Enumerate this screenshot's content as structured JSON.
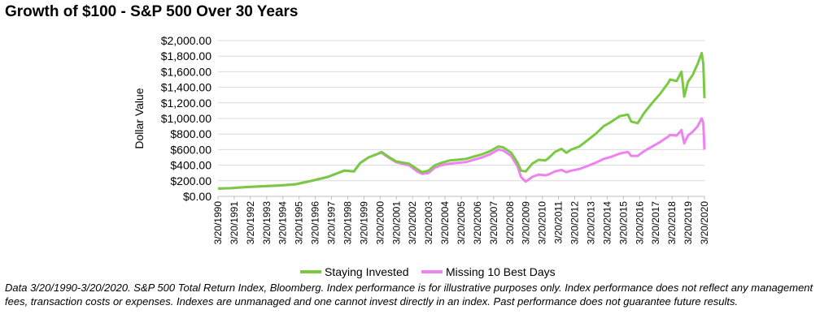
{
  "chart_data": {
    "type": "line",
    "title": "Growth of $100 - S&P 500 Over 30 Years",
    "xlabel": "",
    "ylabel": "Dollar Value",
    "ylim": [
      0,
      2000
    ],
    "yticks": [
      "$0.00",
      "$200.00",
      "$400.00",
      "$600.00",
      "$800.00",
      "$1,000.00",
      "$1,200.00",
      "$1,400.00",
      "$1,600.00",
      "$1,800.00",
      "$2,000.00"
    ],
    "xlim": [
      1990.22,
      2020.22
    ],
    "xticks": [
      "3/20/1990",
      "3/20/1991",
      "3/20/1992",
      "3/20/1993",
      "3/20/1994",
      "3/20/1995",
      "3/20/1996",
      "3/20/1997",
      "3/20/1998",
      "3/20/1999",
      "3/20/2000",
      "3/20/2001",
      "3/20/2002",
      "3/20/2003",
      "3/20/2004",
      "3/20/2005",
      "3/20/2006",
      "3/20/2007",
      "3/20/2008",
      "3/20/2009",
      "3/20/2010",
      "3/20/2011",
      "3/20/2012",
      "3/20/2013",
      "3/20/2014",
      "3/20/2015",
      "3/20/2016",
      "3/20/2017",
      "3/20/2018",
      "3/20/2019",
      "3/20/2020"
    ],
    "grid": true,
    "legend_position": "bottom",
    "series": [
      {
        "name": "Staying Invested",
        "color": "#7ac943",
        "x": [
          1990.22,
          1991.0,
          1992.0,
          1993.0,
          1994.0,
          1995.0,
          1996.0,
          1997.0,
          1998.0,
          1998.6,
          1999.0,
          1999.5,
          2000.0,
          2000.3,
          2000.8,
          2001.2,
          2001.7,
          2002.0,
          2002.5,
          2002.8,
          2003.2,
          2003.6,
          2004.0,
          2004.5,
          2005.0,
          2005.5,
          2006.0,
          2006.5,
          2007.0,
          2007.5,
          2007.8,
          2008.3,
          2008.7,
          2008.9,
          2009.2,
          2009.6,
          2010.0,
          2010.4,
          2010.6,
          2011.0,
          2011.4,
          2011.7,
          2012.0,
          2012.5,
          2013.0,
          2013.5,
          2014.0,
          2014.5,
          2015.0,
          2015.5,
          2015.7,
          2016.1,
          2016.5,
          2017.0,
          2017.5,
          2018.0,
          2018.1,
          2018.5,
          2018.8,
          2018.97,
          2019.2,
          2019.5,
          2019.8,
          2020.05,
          2020.15,
          2020.22
        ],
        "values": [
          100,
          105,
          120,
          130,
          140,
          155,
          200,
          250,
          330,
          320,
          430,
          500,
          540,
          570,
          500,
          450,
          430,
          420,
          350,
          310,
          330,
          400,
          430,
          460,
          470,
          480,
          510,
          540,
          580,
          640,
          630,
          560,
          430,
          330,
          320,
          420,
          470,
          460,
          490,
          570,
          610,
          560,
          600,
          640,
          720,
          800,
          900,
          960,
          1030,
          1050,
          960,
          940,
          1070,
          1200,
          1320,
          1460,
          1500,
          1480,
          1600,
          1280,
          1470,
          1560,
          1700,
          1840,
          1700,
          1260
        ]
      },
      {
        "name": "Missing 10 Best Days",
        "color": "#ee82ee",
        "x": [
          1990.22,
          1991.0,
          1992.0,
          1993.0,
          1994.0,
          1995.0,
          1996.0,
          1997.0,
          1998.0,
          1998.6,
          1999.0,
          1999.5,
          2000.0,
          2000.3,
          2000.8,
          2001.2,
          2001.7,
          2002.0,
          2002.5,
          2002.8,
          2003.2,
          2003.6,
          2004.0,
          2004.5,
          2005.0,
          2005.5,
          2006.0,
          2006.5,
          2007.0,
          2007.5,
          2007.8,
          2008.3,
          2008.7,
          2008.9,
          2009.2,
          2009.6,
          2010.0,
          2010.4,
          2010.6,
          2011.0,
          2011.4,
          2011.7,
          2012.0,
          2012.5,
          2013.0,
          2013.5,
          2014.0,
          2014.5,
          2015.0,
          2015.5,
          2015.7,
          2016.1,
          2016.5,
          2017.0,
          2017.5,
          2018.0,
          2018.1,
          2018.5,
          2018.8,
          2018.97,
          2019.2,
          2019.5,
          2019.8,
          2020.05,
          2020.15,
          2020.22
        ],
        "values": [
          100,
          105,
          120,
          130,
          140,
          155,
          200,
          250,
          330,
          320,
          430,
          500,
          540,
          560,
          490,
          440,
          410,
          400,
          320,
          290,
          300,
          370,
          400,
          420,
          430,
          440,
          470,
          500,
          540,
          600,
          590,
          520,
          380,
          250,
          190,
          250,
          280,
          270,
          280,
          320,
          340,
          310,
          330,
          350,
          390,
          430,
          480,
          510,
          550,
          570,
          520,
          520,
          580,
          640,
          700,
          770,
          790,
          780,
          850,
          680,
          780,
          830,
          900,
          1000,
          940,
          600
        ]
      }
    ]
  },
  "footnote": "Data 3/20/1990-3/20/2020. S&P 500 Total Return Index, Bloomberg. Index performance is for illustrative purposes only. Index performance does not reflect any management fees, transaction costs or expenses. Indexes are unmanaged and one cannot invest directly in an index. Past performance does not guarantee future results."
}
